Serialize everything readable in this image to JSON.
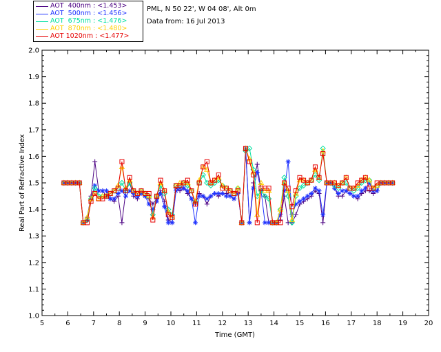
{
  "legend": [
    {
      "label": "AOT  400nm : <1.453>",
      "color": "#4b0082"
    },
    {
      "label": "AOT  500nm : <1.456>",
      "color": "#1e32ff"
    },
    {
      "label": "AOT  675nm : <1.476>",
      "color": "#00e0a0"
    },
    {
      "label": "AOT  870nm : <1.480>",
      "color": "#ffd000"
    },
    {
      "label": "AOT 1020nm : <1.477>",
      "color": "#e60000"
    }
  ],
  "info": {
    "site": "PML, N 50 22', W 04 08', Alt 0m",
    "date": "Data from: 16 Jul 2013"
  },
  "chart_data": {
    "type": "line",
    "title": "",
    "xlabel": "Time (GMT)",
    "ylabel": "Real Part of Refractive Index",
    "xlim": [
      5,
      20
    ],
    "ylim": [
      1.0,
      2.0
    ],
    "x_ticks": [
      "5",
      "6",
      "7",
      "8",
      "9",
      "10",
      "11",
      "12",
      "13",
      "14",
      "15",
      "16",
      "17",
      "18",
      "19",
      "20"
    ],
    "y_ticks": [
      "1.0",
      "1.1",
      "1.2",
      "1.3",
      "1.4",
      "1.5",
      "1.6",
      "1.7",
      "1.8",
      "1.9",
      "2.0"
    ],
    "grid": false,
    "x": [
      5.85,
      6.0,
      6.15,
      6.3,
      6.45,
      6.6,
      6.75,
      6.9,
      7.05,
      7.2,
      7.35,
      7.5,
      7.65,
      7.8,
      7.95,
      8.1,
      8.25,
      8.4,
      8.55,
      8.7,
      8.85,
      9.0,
      9.15,
      9.3,
      9.45,
      9.6,
      9.75,
      9.9,
      10.05,
      10.2,
      10.35,
      10.5,
      10.65,
      10.8,
      10.95,
      11.1,
      11.25,
      11.4,
      11.55,
      11.7,
      11.85,
      12.0,
      12.15,
      12.3,
      12.45,
      12.6,
      12.75,
      12.9,
      13.05,
      13.2,
      13.35,
      13.5,
      13.65,
      13.8,
      13.95,
      14.1,
      14.25,
      14.4,
      14.55,
      14.7,
      14.85,
      15.0,
      15.15,
      15.3,
      15.45,
      15.6,
      15.75,
      15.9,
      16.05,
      16.2,
      16.35,
      16.5,
      16.65,
      16.8,
      16.95,
      17.1,
      17.25,
      17.4,
      17.55,
      17.7,
      17.85,
      18.0,
      18.15,
      18.3,
      18.45,
      18.6
    ],
    "series": [
      {
        "name": "AOT  400nm : <1.453>",
        "color": "#4b0082",
        "marker": "plus",
        "values": [
          1.5,
          1.5,
          1.5,
          1.5,
          1.5,
          1.35,
          1.37,
          1.45,
          1.58,
          1.47,
          1.47,
          1.45,
          1.44,
          1.43,
          1.45,
          1.35,
          1.47,
          1.5,
          1.45,
          1.44,
          1.46,
          1.45,
          1.44,
          1.42,
          1.44,
          1.47,
          1.43,
          1.36,
          1.35,
          1.48,
          1.47,
          1.48,
          1.46,
          1.44,
          1.42,
          1.46,
          1.45,
          1.42,
          1.45,
          1.46,
          1.45,
          1.46,
          1.46,
          1.45,
          1.44,
          1.46,
          1.35,
          1.62,
          1.35,
          1.5,
          1.57,
          1.47,
          1.45,
          1.35,
          1.35,
          1.35,
          1.36,
          1.45,
          1.35,
          1.35,
          1.38,
          1.42,
          1.43,
          1.44,
          1.45,
          1.47,
          1.46,
          1.35,
          1.5,
          1.5,
          1.48,
          1.45,
          1.45,
          1.47,
          1.46,
          1.45,
          1.44,
          1.46,
          1.47,
          1.47,
          1.46,
          1.47,
          1.5,
          1.5,
          1.5,
          1.5
        ]
      },
      {
        "name": "AOT  500nm : <1.456>",
        "color": "#1e32ff",
        "marker": "asterisk",
        "values": [
          1.5,
          1.5,
          1.5,
          1.5,
          1.5,
          1.35,
          1.36,
          1.44,
          1.49,
          1.47,
          1.47,
          1.47,
          1.44,
          1.44,
          1.46,
          1.47,
          1.45,
          1.47,
          1.46,
          1.45,
          1.46,
          1.45,
          1.42,
          1.4,
          1.43,
          1.46,
          1.41,
          1.35,
          1.35,
          1.47,
          1.48,
          1.48,
          1.47,
          1.44,
          1.35,
          1.45,
          1.45,
          1.44,
          1.45,
          1.46,
          1.46,
          1.46,
          1.45,
          1.45,
          1.44,
          1.46,
          1.35,
          1.63,
          1.35,
          1.48,
          1.54,
          1.47,
          1.35,
          1.35,
          1.35,
          1.35,
          1.38,
          1.47,
          1.58,
          1.38,
          1.42,
          1.43,
          1.44,
          1.45,
          1.46,
          1.48,
          1.47,
          1.38,
          1.5,
          1.5,
          1.48,
          1.46,
          1.47,
          1.47,
          1.46,
          1.45,
          1.45,
          1.47,
          1.48,
          1.5,
          1.47,
          1.47,
          1.5,
          1.5,
          1.5,
          1.5
        ]
      },
      {
        "name": "AOT  675nm : <1.476>",
        "color": "#00e0a0",
        "marker": "diamond",
        "values": [
          1.5,
          1.5,
          1.5,
          1.5,
          1.5,
          1.35,
          1.36,
          1.44,
          1.48,
          1.45,
          1.45,
          1.45,
          1.46,
          1.47,
          1.48,
          1.5,
          1.47,
          1.5,
          1.47,
          1.46,
          1.47,
          1.46,
          1.45,
          1.38,
          1.45,
          1.49,
          1.46,
          1.4,
          1.38,
          1.49,
          1.49,
          1.5,
          1.49,
          1.47,
          1.43,
          1.5,
          1.53,
          1.5,
          1.49,
          1.5,
          1.51,
          1.49,
          1.48,
          1.47,
          1.46,
          1.48,
          1.35,
          1.62,
          1.63,
          1.55,
          1.45,
          1.47,
          1.45,
          1.44,
          1.35,
          1.35,
          1.4,
          1.52,
          1.45,
          1.35,
          1.45,
          1.48,
          1.49,
          1.5,
          1.51,
          1.53,
          1.51,
          1.63,
          1.5,
          1.5,
          1.49,
          1.48,
          1.5,
          1.5,
          1.48,
          1.47,
          1.48,
          1.5,
          1.51,
          1.51,
          1.48,
          1.49,
          1.5,
          1.5,
          1.5,
          1.5
        ]
      },
      {
        "name": "AOT  870nm : <1.480>",
        "color": "#ffd000",
        "marker": "triangle",
        "values": [
          1.5,
          1.5,
          1.5,
          1.5,
          1.5,
          1.35,
          1.37,
          1.44,
          1.46,
          1.44,
          1.45,
          1.45,
          1.46,
          1.47,
          1.49,
          1.56,
          1.48,
          1.51,
          1.47,
          1.46,
          1.47,
          1.46,
          1.45,
          1.37,
          1.45,
          1.5,
          1.47,
          1.39,
          1.37,
          1.49,
          1.5,
          1.5,
          1.5,
          1.47,
          1.43,
          1.51,
          1.56,
          1.55,
          1.5,
          1.51,
          1.52,
          1.49,
          1.48,
          1.47,
          1.46,
          1.48,
          1.35,
          1.63,
          1.59,
          1.54,
          1.38,
          1.5,
          1.47,
          1.47,
          1.35,
          1.35,
          1.4,
          1.5,
          1.47,
          1.36,
          1.46,
          1.51,
          1.51,
          1.5,
          1.51,
          1.55,
          1.52,
          1.62,
          1.5,
          1.5,
          1.5,
          1.49,
          1.5,
          1.52,
          1.48,
          1.48,
          1.49,
          1.51,
          1.52,
          1.51,
          1.48,
          1.49,
          1.5,
          1.5,
          1.5,
          1.5
        ]
      },
      {
        "name": "AOT 1020nm : <1.477>",
        "color": "#e60000",
        "marker": "square",
        "values": [
          1.5,
          1.5,
          1.5,
          1.5,
          1.5,
          1.35,
          1.35,
          1.43,
          1.46,
          1.44,
          1.44,
          1.45,
          1.46,
          1.47,
          1.48,
          1.58,
          1.47,
          1.52,
          1.47,
          1.46,
          1.47,
          1.46,
          1.46,
          1.36,
          1.45,
          1.51,
          1.47,
          1.38,
          1.37,
          1.49,
          1.49,
          1.5,
          1.51,
          1.47,
          1.42,
          1.5,
          1.56,
          1.58,
          1.5,
          1.51,
          1.53,
          1.48,
          1.48,
          1.47,
          1.46,
          1.47,
          1.35,
          1.63,
          1.58,
          1.53,
          1.35,
          1.48,
          1.48,
          1.48,
          1.35,
          1.35,
          1.35,
          1.5,
          1.48,
          1.41,
          1.47,
          1.52,
          1.51,
          1.5,
          1.51,
          1.56,
          1.52,
          1.61,
          1.5,
          1.5,
          1.5,
          1.49,
          1.5,
          1.52,
          1.48,
          1.48,
          1.5,
          1.51,
          1.52,
          1.48,
          1.48,
          1.5,
          1.5,
          1.5,
          1.5,
          1.5
        ]
      }
    ]
  }
}
